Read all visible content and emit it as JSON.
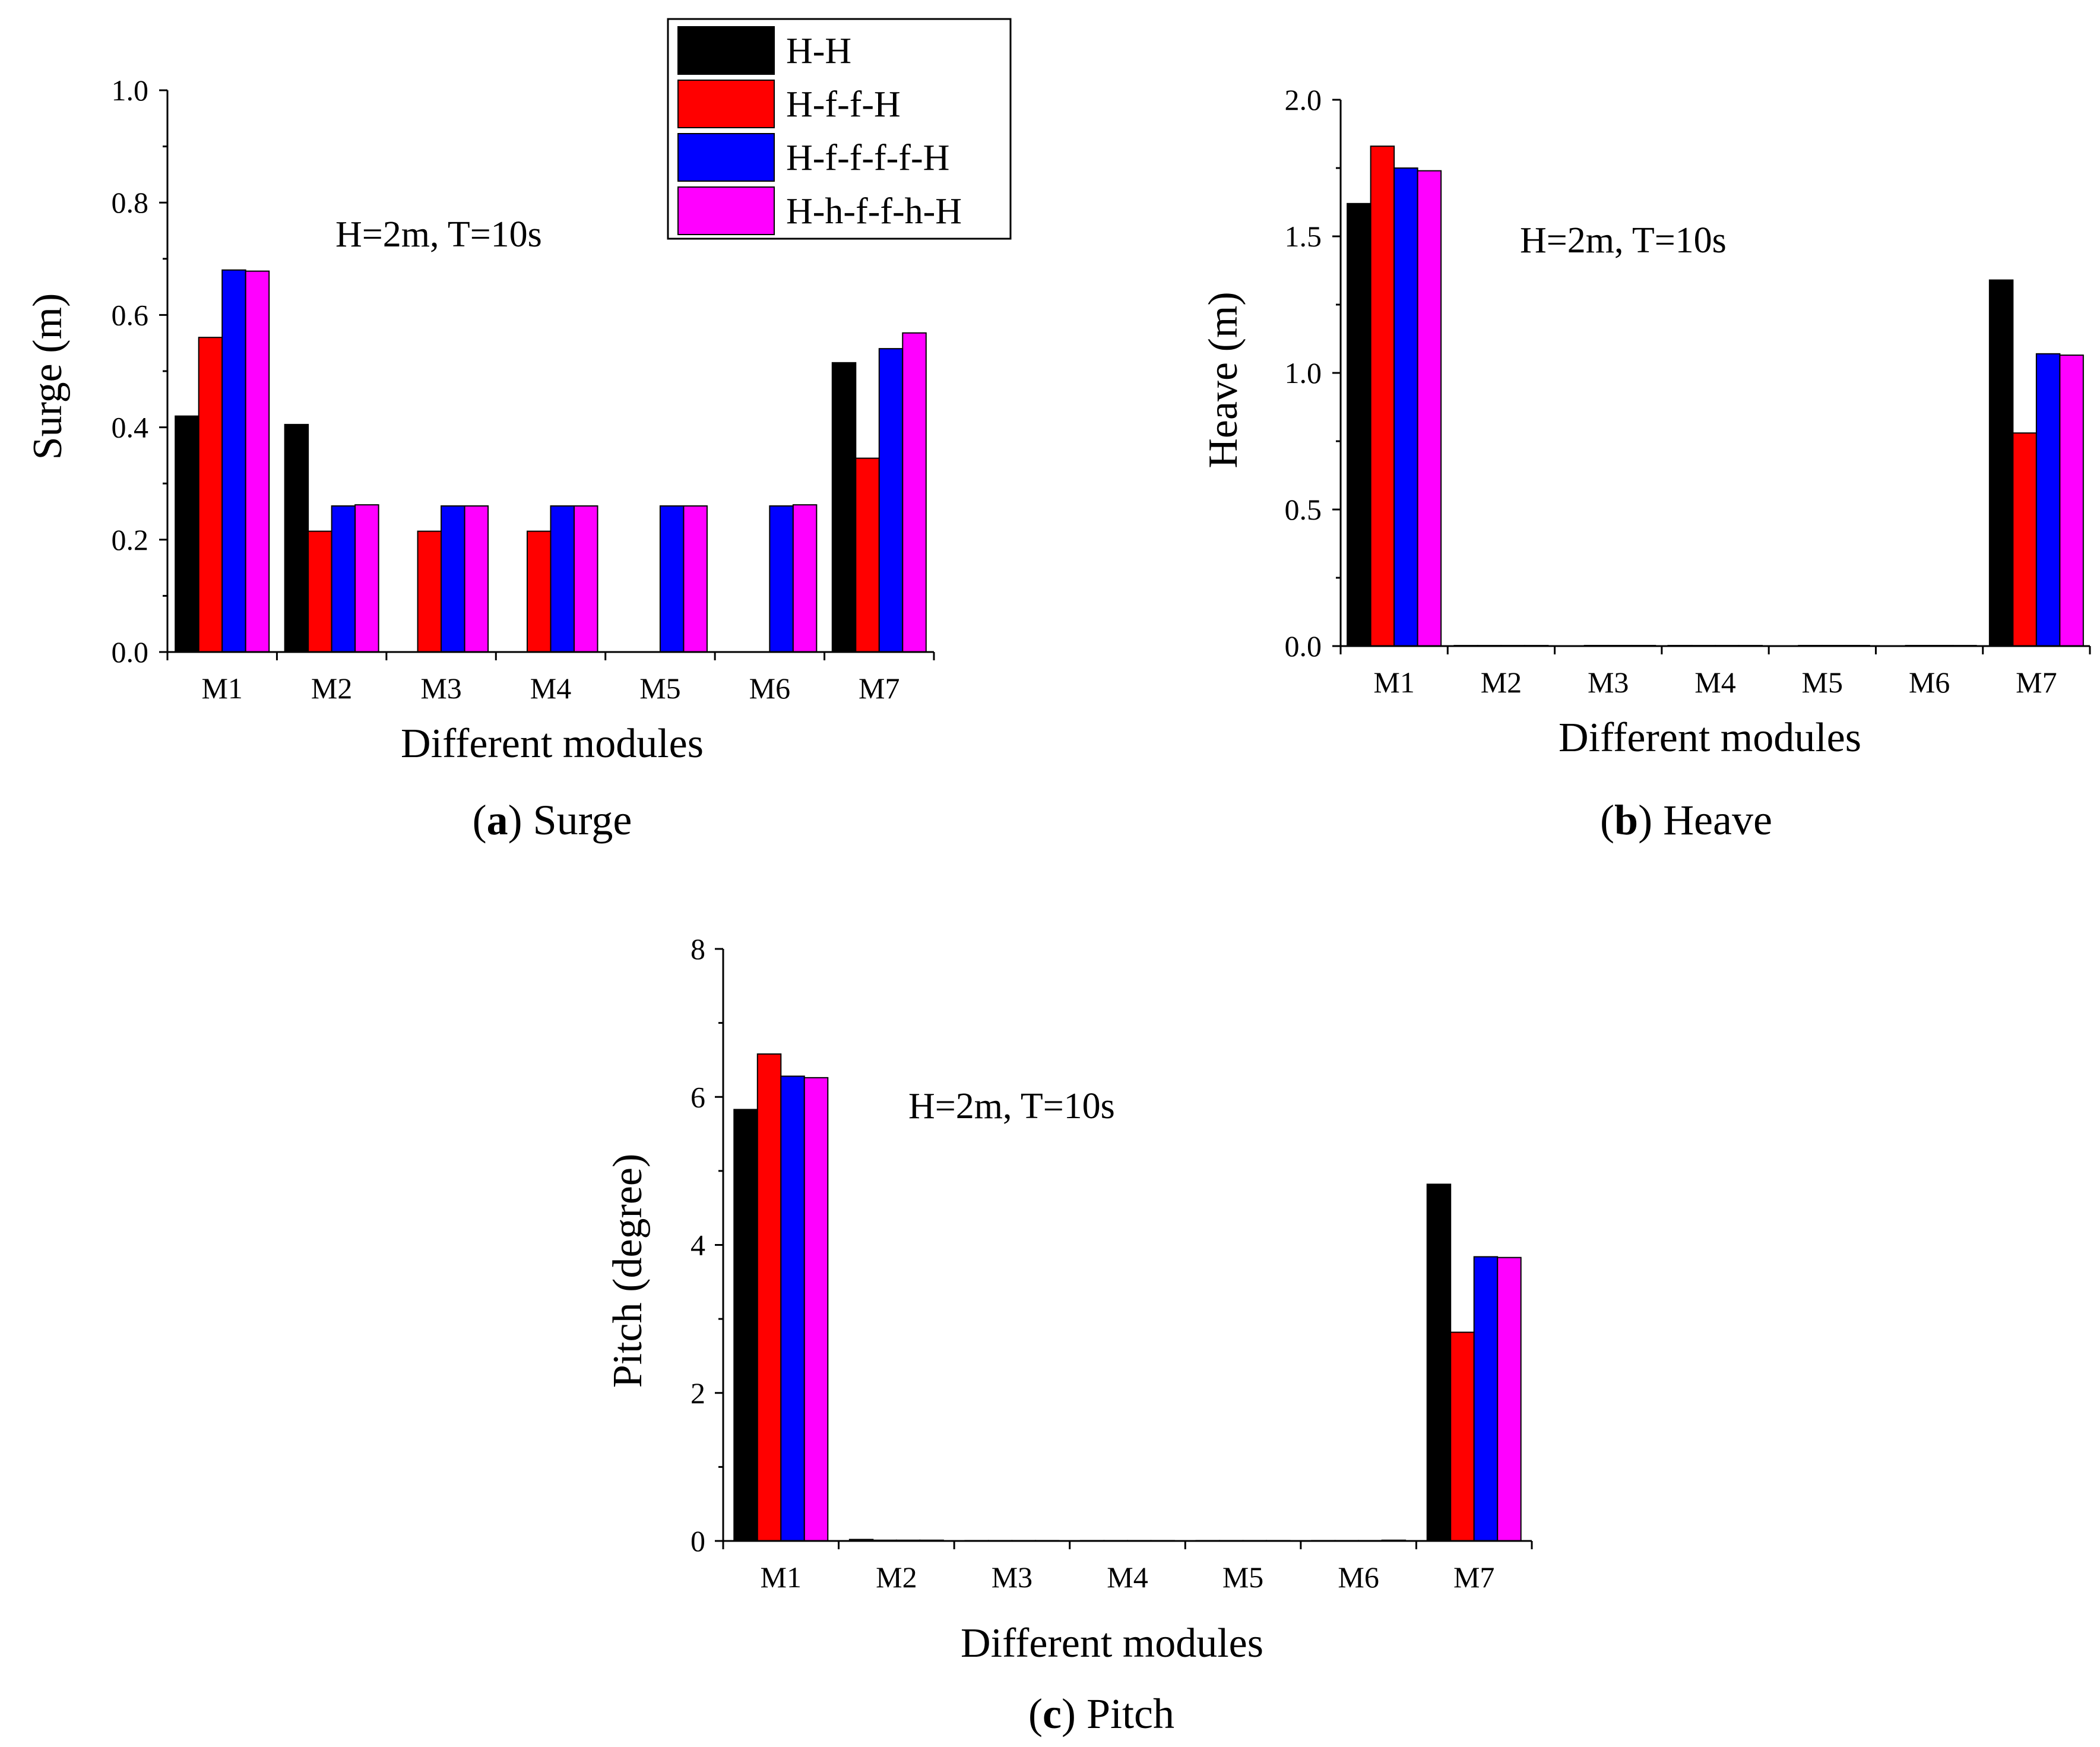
{
  "colors": {
    "H-H": "#000000",
    "H-f-f-H": "#ff0000",
    "H-f-f-f-f-H": "#0000ff",
    "H-h-f-f-h-H": "#ff00ff"
  },
  "legend": {
    "entries": [
      "H-H",
      "H-f-f-H",
      "H-f-f-f-f-H",
      "H-h-f-f-h-H"
    ]
  },
  "chart_data": [
    {
      "id": "surge",
      "type": "bar",
      "caption_letter": "a",
      "caption_text": "Surge",
      "annotation": "H=2m, T=10s",
      "xlabel": "Different modules",
      "ylabel": "Surge (m)",
      "ylim": [
        0,
        1.0
      ],
      "yticks": [
        0.0,
        0.2,
        0.4,
        0.6,
        0.8,
        1.0
      ],
      "ytick_labels": [
        "0.0",
        "0.2",
        "0.4",
        "0.6",
        "0.8",
        "1.0"
      ],
      "categories": [
        "M1",
        "M2",
        "M3",
        "M4",
        "M5",
        "M6",
        "M7"
      ],
      "series": [
        {
          "name": "H-H",
          "values": [
            0.42,
            0.405,
            0.0,
            0.0,
            0.0,
            0.0,
            0.515
          ]
        },
        {
          "name": "H-f-f-H",
          "values": [
            0.56,
            0.215,
            0.215,
            0.215,
            0.0,
            0.0,
            0.345
          ]
        },
        {
          "name": "H-f-f-f-f-H",
          "values": [
            0.68,
            0.26,
            0.26,
            0.26,
            0.26,
            0.26,
            0.54
          ]
        },
        {
          "name": "H-h-f-f-h-H",
          "values": [
            0.678,
            0.262,
            0.26,
            0.26,
            0.26,
            0.262,
            0.568
          ]
        }
      ]
    },
    {
      "id": "heave",
      "type": "bar",
      "caption_letter": "b",
      "caption_text": "Heave",
      "annotation": "H=2m, T=10s",
      "xlabel": "Different modules",
      "ylabel": "Heave (m)",
      "ylim": [
        0,
        2.0
      ],
      "yticks": [
        0.0,
        0.5,
        1.0,
        1.5,
        2.0
      ],
      "ytick_labels": [
        "0.0",
        "0.5",
        "1.0",
        "1.5",
        "2.0"
      ],
      "categories": [
        "M1",
        "M2",
        "M3",
        "M4",
        "M5",
        "M6",
        "M7"
      ],
      "series": [
        {
          "name": "H-H",
          "values": [
            1.62,
            0.002,
            0.0,
            0.001,
            0.0,
            0.0,
            1.34
          ]
        },
        {
          "name": "H-f-f-H",
          "values": [
            1.83,
            0.002,
            0.001,
            0.002,
            0.001,
            0.001,
            0.78
          ]
        },
        {
          "name": "H-f-f-f-f-H",
          "values": [
            1.75,
            0.002,
            0.001,
            0.002,
            0.001,
            0.001,
            1.07
          ]
        },
        {
          "name": "H-h-f-f-h-H",
          "values": [
            1.74,
            0.002,
            0.001,
            0.002,
            0.001,
            0.002,
            1.065
          ]
        }
      ]
    },
    {
      "id": "pitch",
      "type": "bar",
      "caption_letter": "c",
      "caption_text": "Pitch",
      "annotation": "H=2m, T=10s",
      "xlabel": "Different modules",
      "ylabel": "Pitch (degree)",
      "ylim": [
        0,
        8
      ],
      "yticks": [
        0,
        2,
        4,
        6,
        8
      ],
      "ytick_labels": [
        "0",
        "2",
        "4",
        "6",
        "8"
      ],
      "categories": [
        "M1",
        "M2",
        "M3",
        "M4",
        "M5",
        "M6",
        "M7"
      ],
      "series": [
        {
          "name": "H-H",
          "values": [
            5.83,
            0.02,
            0.005,
            0.005,
            0.005,
            0.005,
            4.82
          ]
        },
        {
          "name": "H-f-f-H",
          "values": [
            6.58,
            0.01,
            0.005,
            0.005,
            0.005,
            0.005,
            2.82
          ]
        },
        {
          "name": "H-f-f-f-f-H",
          "values": [
            6.28,
            0.01,
            0.005,
            0.005,
            0.005,
            0.005,
            3.84
          ]
        },
        {
          "name": "H-h-f-f-h-H",
          "values": [
            6.26,
            0.01,
            0.005,
            0.005,
            0.005,
            0.01,
            3.83
          ]
        }
      ]
    }
  ]
}
